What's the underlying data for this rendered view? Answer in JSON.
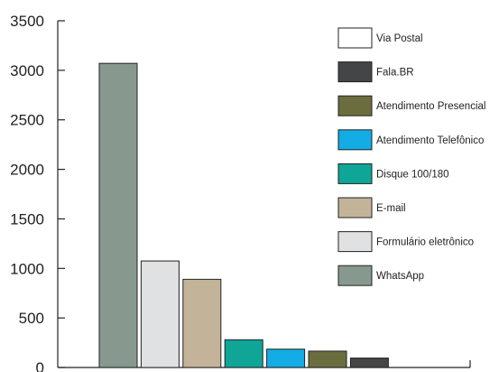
{
  "chart_data": {
    "type": "bar",
    "title": "",
    "xlabel": "",
    "ylabel": "",
    "ylim": [
      0,
      3500
    ],
    "yticks": [
      0,
      500,
      1000,
      1500,
      2000,
      2500,
      3000,
      3500
    ],
    "grid": false,
    "legend_position": "top-right",
    "categories": [
      "WhatsApp",
      "Formulário eletrônico",
      "E-mail",
      "Disque 100/180",
      "Atendimento Telefônico",
      "Atendimento Presencial",
      "Fala.BR",
      "Via Postal"
    ],
    "values": [
      3070,
      1075,
      890,
      280,
      185,
      165,
      95,
      0
    ],
    "colors": [
      "#87998f",
      "#e0e1e3",
      "#c3b499",
      "#0fa597",
      "#13ace4",
      "#6b6d3f",
      "#444547",
      "#ffffff"
    ],
    "legend": [
      "Via Postal",
      "Fala.BR",
      "Atendimento Presencial",
      "Atendimento Telefônico",
      "Disque 100/180",
      "E-mail",
      "Formulário eletrônico",
      "WhatsApp"
    ]
  }
}
